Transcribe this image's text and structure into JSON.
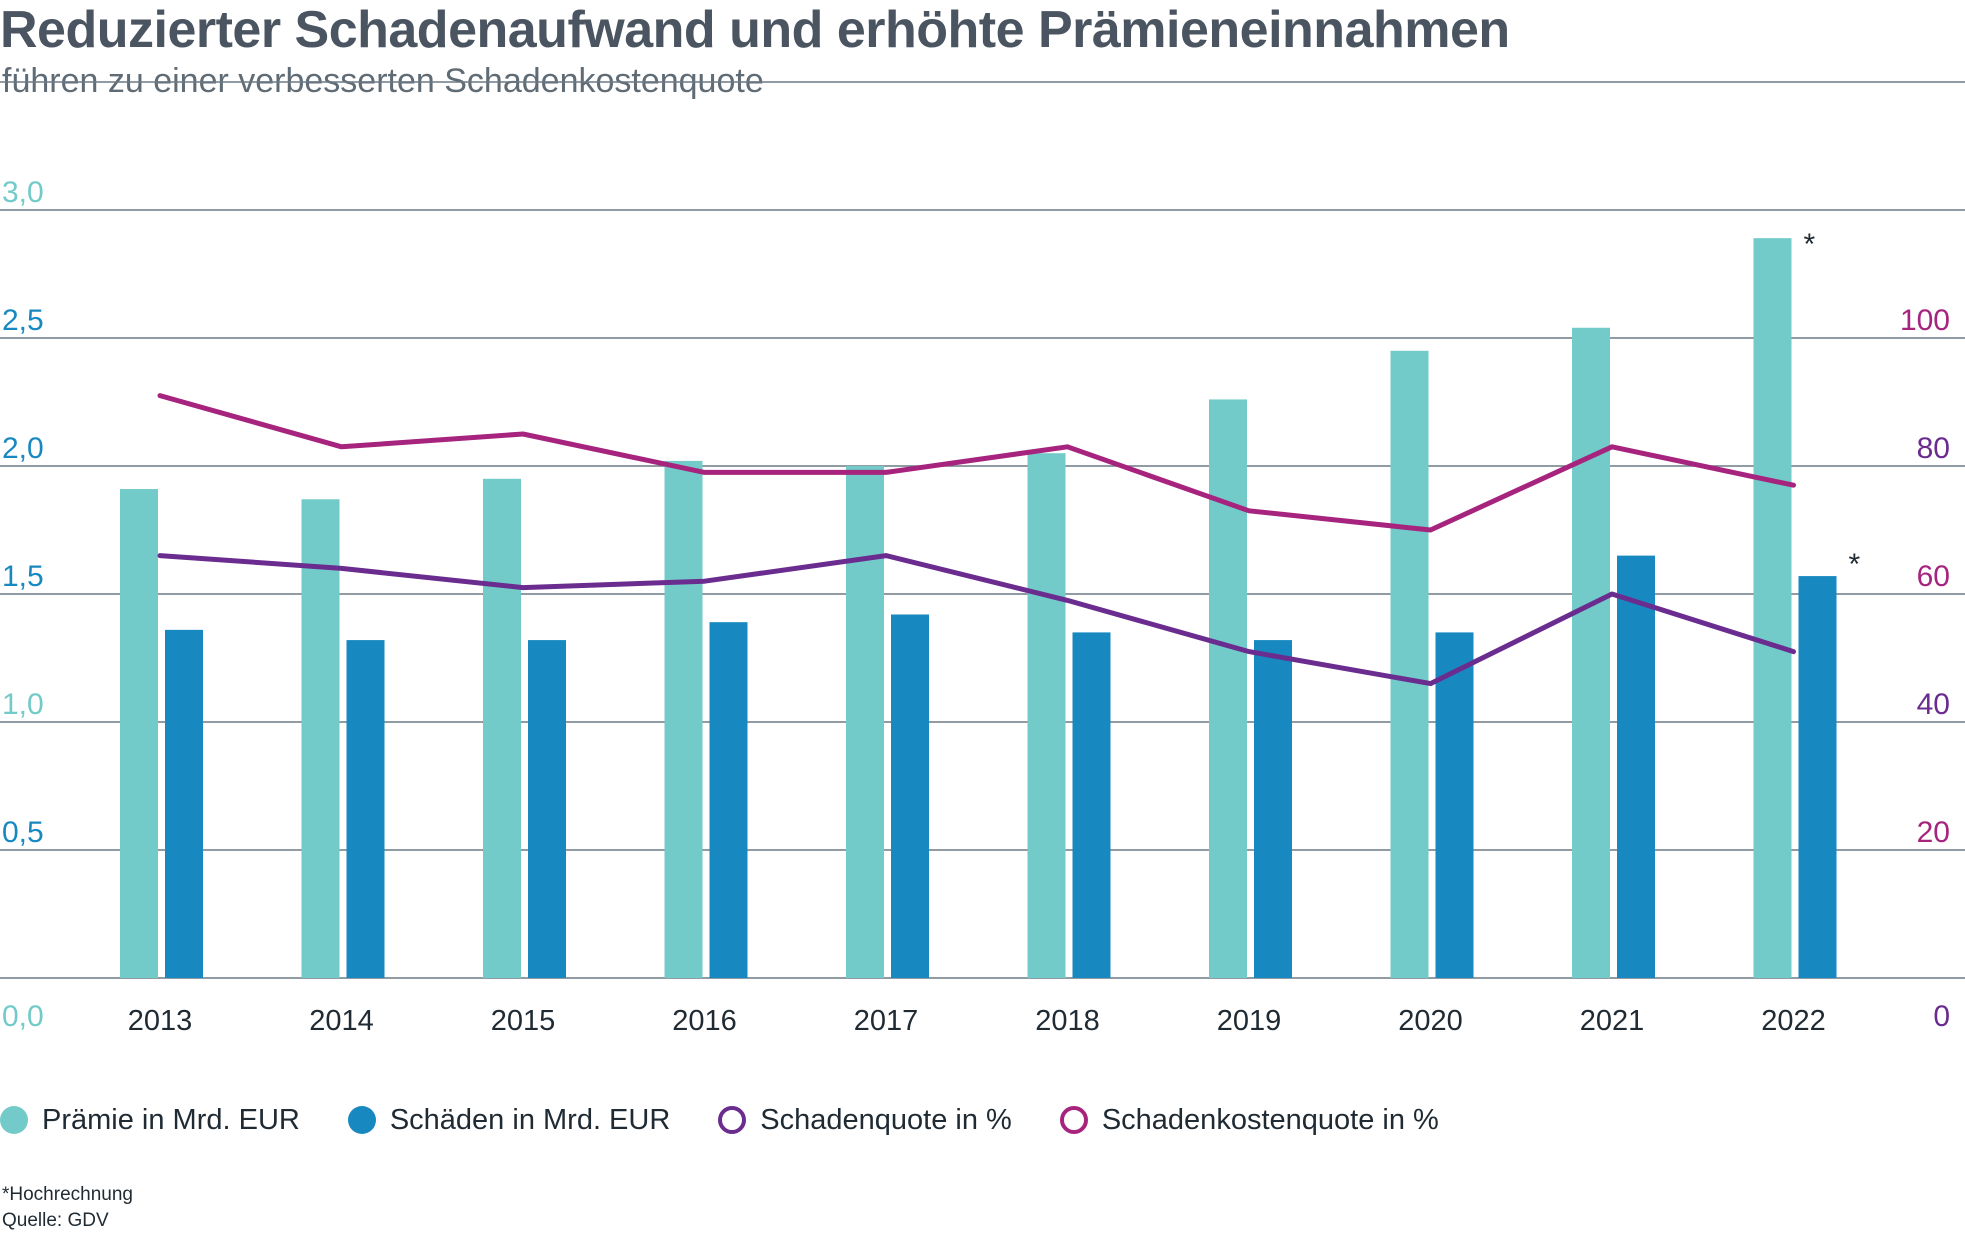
{
  "title": "Reduzierter Schadenaufwand und erhöhte Prämieneinnahmen",
  "subtitle": "führen zu einer verbesserten Schadenkostenquote",
  "colors": {
    "praemie": "#72cbc8",
    "schaeden": "#1889c0",
    "schadenquote": "#6b2c8f",
    "schadenkostenquote": "#a6247e",
    "grid": "#6d7a86",
    "left_axis_upper": "#1889c0",
    "left_axis_lower": "#72cbc8"
  },
  "chart_data": {
    "type": "bar",
    "categories": [
      "2013",
      "2014",
      "2015",
      "2016",
      "2017",
      "2018",
      "2019",
      "2020",
      "2021",
      "2022"
    ],
    "left_axis": {
      "ylim": [
        0,
        3.0
      ],
      "ticks": [
        "0,0",
        "0,5",
        "1,0",
        "1,5",
        "2,0",
        "2,5",
        "3,0"
      ]
    },
    "right_axis": {
      "ylim": [
        0,
        120
      ],
      "ticks": [
        "0",
        "20",
        "40",
        "60",
        "80",
        "100"
      ]
    },
    "series": [
      {
        "name": "Prämie in Mrd. EUR",
        "type": "bar",
        "axis": "left",
        "values": [
          1.91,
          1.87,
          1.95,
          2.02,
          2.0,
          2.05,
          2.26,
          2.45,
          2.54,
          2.89
        ]
      },
      {
        "name": "Schäden in Mrd. EUR",
        "type": "bar",
        "axis": "left",
        "values": [
          1.36,
          1.32,
          1.32,
          1.39,
          1.42,
          1.35,
          1.32,
          1.35,
          1.65,
          1.57
        ]
      },
      {
        "name": "Schadenquote in %",
        "type": "line",
        "axis": "right",
        "values": [
          66,
          64,
          61,
          62,
          66,
          59,
          51,
          46,
          60,
          51
        ]
      },
      {
        "name": "Schadenkostenquote in %",
        "type": "line",
        "axis": "right",
        "values": [
          91,
          83,
          85,
          79,
          79,
          83,
          73,
          70,
          83,
          77
        ]
      }
    ],
    "annotations": [
      {
        "text": "*",
        "series": "Prämie in Mrd. EUR",
        "category": "2022"
      },
      {
        "text": "*",
        "series": "Schäden in Mrd. EUR",
        "category": "2022"
      }
    ],
    "grid": true,
    "legend_position": "bottom-left"
  },
  "legend": [
    {
      "label": "Prämie in Mrd. EUR",
      "style": "filled",
      "color": "#72cbc8"
    },
    {
      "label": "Schäden in Mrd. EUR",
      "style": "filled",
      "color": "#1889c0"
    },
    {
      "label": "Schadenquote in %",
      "style": "ring",
      "color": "#6b2c8f"
    },
    {
      "label": "Schadenkostenquote in %",
      "style": "ring",
      "color": "#a6247e"
    }
  ],
  "footnotes": [
    "*Hochrechnung",
    "Quelle: GDV"
  ]
}
